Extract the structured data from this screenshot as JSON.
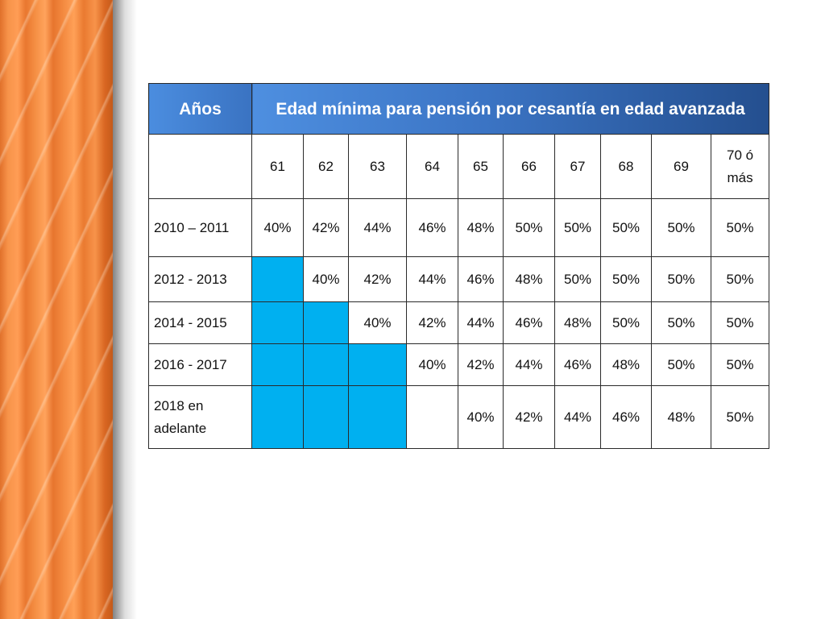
{
  "table": {
    "header_years": "Años",
    "header_title": "Edad mínima para pensión por cesantía en edad avanzada",
    "ages": [
      "61",
      "62",
      "63",
      "64",
      "65",
      "66",
      "67",
      "68",
      "69",
      "70 ó más"
    ],
    "rows": [
      {
        "period": "2010 – 2011",
        "cells": [
          "40%",
          "42%",
          "44%",
          "46%",
          "48%",
          "50%",
          "50%",
          "50%",
          "50%",
          "50%"
        ]
      },
      {
        "period": "2012 - 2013",
        "cells": [
          null,
          "40%",
          "42%",
          "44%",
          "46%",
          "48%",
          "50%",
          "50%",
          "50%",
          "50%"
        ]
      },
      {
        "period": "2014 - 2015",
        "cells": [
          null,
          null,
          "40%",
          "42%",
          "44%",
          "46%",
          "48%",
          "50%",
          "50%",
          "50%"
        ]
      },
      {
        "period": "2016 - 2017",
        "cells": [
          null,
          null,
          null,
          "40%",
          "42%",
          "44%",
          "46%",
          "48%",
          "50%",
          "50%"
        ]
      },
      {
        "period": "2018 en adelante",
        "cells": [
          null,
          null,
          null,
          "",
          "40%",
          "42%",
          "44%",
          "46%",
          "48%",
          "50%"
        ]
      }
    ]
  },
  "colors": {
    "header_blue": "#3b74c4",
    "highlight_cell": "#00b0f0",
    "curtain_orange": "#f58f44"
  }
}
